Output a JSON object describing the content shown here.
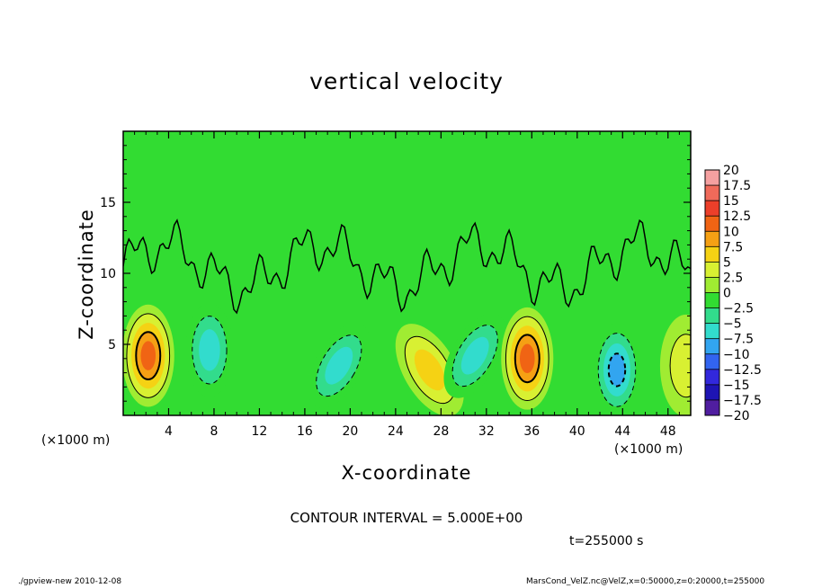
{
  "chart_data": {
    "type": "heatmap",
    "title": "vertical velocity",
    "xlabel": "X-coordinate",
    "ylabel": "Z-coordinate",
    "x_unit_label": "(×1000 m)",
    "x_ticks": [
      "4",
      "8",
      "12",
      "16",
      "20",
      "24",
      "28",
      "32",
      "36",
      "40",
      "44",
      "48"
    ],
    "y_ticks": [
      "5",
      "10",
      "15"
    ],
    "xlim": [
      0,
      50
    ],
    "ylim": [
      0,
      20
    ],
    "colorbar": {
      "levels": [
        "20",
        "17.5",
        "15",
        "12.5",
        "10",
        "7.5",
        "5",
        "2.5",
        "0",
        "−2.5",
        "−5",
        "−7.5",
        "−10",
        "−12.5",
        "−15",
        "−17.5",
        "−20"
      ],
      "colors": [
        "#f5a0a0",
        "#f06a5a",
        "#ec3f2a",
        "#f06414",
        "#f5a014",
        "#f5d214",
        "#d8f032",
        "#a0ec32",
        "#32dc32",
        "#32dc8c",
        "#32dccd",
        "#32a5f0",
        "#3264f0",
        "#3228dc",
        "#1e14b4",
        "#501ea0"
      ]
    },
    "features": [
      {
        "kind": "updraft",
        "x": 2.2,
        "z": 4.2,
        "peak": 12.5
      },
      {
        "kind": "downdraft",
        "x": 7.6,
        "z": 4.6,
        "peak": -7.5
      },
      {
        "kind": "downdraft",
        "x": 19.0,
        "z": 3.5,
        "peak": -7.5
      },
      {
        "kind": "updraft",
        "x": 27.0,
        "z": 3.2,
        "peak": 7.5
      },
      {
        "kind": "downdraft",
        "x": 31.0,
        "z": 4.2,
        "peak": -7.5
      },
      {
        "kind": "updraft",
        "x": 35.6,
        "z": 4.0,
        "peak": 12.5
      },
      {
        "kind": "downdraft",
        "x": 43.5,
        "z": 3.2,
        "peak": -10
      },
      {
        "kind": "updraft",
        "x": 49.6,
        "z": 3.5,
        "peak": 5
      }
    ]
  },
  "annotations": {
    "contour_interval": "CONTOUR INTERVAL = 5.000E+00",
    "time": "t=255000 s",
    "footer_left": "./gpview-new   2010-12-08",
    "footer_right": "MarsCond_VelZ.nc@VelZ,x=0:50000,z=0:20000,t=255000"
  }
}
